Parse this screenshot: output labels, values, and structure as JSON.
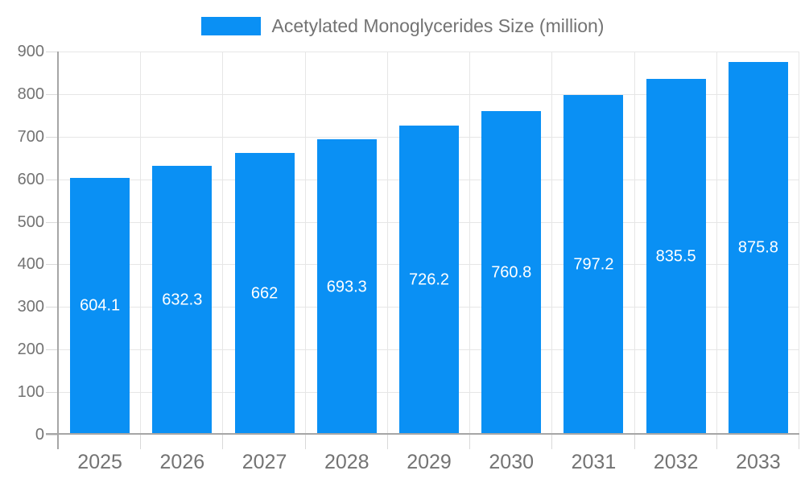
{
  "chart": {
    "legend_label": "Acetylated Monoglycerides Size (million)",
    "colors": {
      "bar": "#0a90f4",
      "grid": "#e6e6e6",
      "axis": "#a6a6a6",
      "tick": "#d9d9d9",
      "label": "#737373",
      "bar_label": "#ffffff",
      "background": "#ffffff"
    }
  },
  "chart_data": {
    "type": "bar",
    "title": "",
    "series_name": "Acetylated Monoglycerides Size (million)",
    "categories": [
      "2025",
      "2026",
      "2027",
      "2028",
      "2029",
      "2030",
      "2031",
      "2032",
      "2033"
    ],
    "values": [
      604.1,
      632.3,
      662,
      693.3,
      726.2,
      760.8,
      797.2,
      835.5,
      875.8
    ],
    "xlabel": "",
    "ylabel": "",
    "ylim": [
      0,
      900
    ],
    "ytick_step": 100,
    "yticks": [
      0,
      100,
      200,
      300,
      400,
      500,
      600,
      700,
      800,
      900
    ],
    "grid": true,
    "legend_position": "top",
    "bar_labels_visible": true,
    "bar_label_position": "middle"
  }
}
